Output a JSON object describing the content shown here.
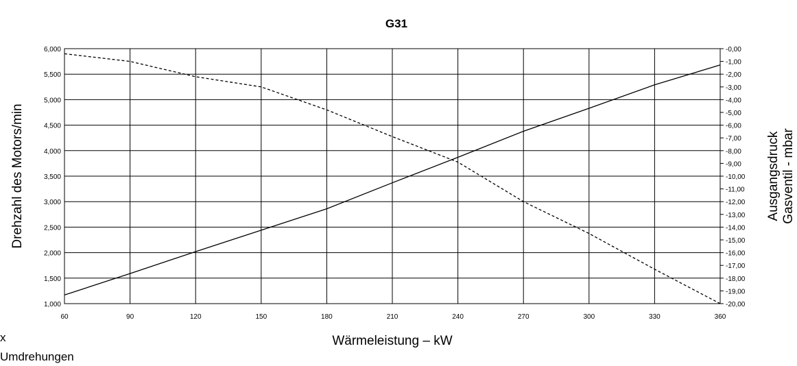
{
  "chart_data": {
    "type": "line",
    "title": "G31",
    "xlabel": "Wärmeleistung – kW",
    "ylabel_left": "Drehzahl des Motors/min",
    "ylabel_right_line1": "Ausgangsdruck",
    "ylabel_right_line2": "Gasventil - mbar",
    "xlim": [
      60,
      360
    ],
    "x_ticks": [
      "60",
      "90",
      "120",
      "150",
      "180",
      "210",
      "240",
      "270",
      "300",
      "330",
      "360"
    ],
    "ylim_left": [
      1000,
      6000
    ],
    "y_left_ticks": [
      "1,000",
      "1,500",
      "2,000",
      "2,500",
      "3,000",
      "3,500",
      "4,000",
      "4,500",
      "5,000",
      "5,500",
      "6,000"
    ],
    "ylim_right": [
      -20,
      0
    ],
    "y_right_ticks": [
      "-0,00",
      "-1,00",
      "-2,00",
      "-3,00",
      "-4,00",
      "-5,00",
      "-6,00",
      "-7,00",
      "-8,00",
      "-9,00",
      "-10,00",
      "-11,00",
      "-12,00",
      "-13,00",
      "-14,00",
      "-15,00",
      "-16,00",
      "-17,00",
      "-18,00",
      "-19,00",
      "-20,00"
    ],
    "grid": true,
    "series": [
      {
        "axis": "left",
        "style": "solid",
        "x": [
          60,
          90,
          120,
          150,
          180,
          210,
          240,
          270,
          300,
          330,
          360
        ],
        "values": [
          1170,
          1590,
          2020,
          2440,
          2860,
          3370,
          3870,
          4380,
          4830,
          5290,
          5680
        ]
      },
      {
        "axis": "right",
        "style": "dashed",
        "x": [
          60,
          90,
          120,
          150,
          180,
          210,
          240,
          270,
          300,
          330,
          360
        ],
        "values": [
          -0.4,
          -1.0,
          -2.2,
          -3.0,
          -4.8,
          -6.9,
          -8.9,
          -12.0,
          -14.5,
          -17.3,
          -20.0
        ]
      }
    ]
  },
  "notes": {
    "line1": "x",
    "line2": "Umdrehungen"
  },
  "colors": {
    "line": "#000000",
    "grid": "#000000",
    "background": "#ffffff"
  }
}
